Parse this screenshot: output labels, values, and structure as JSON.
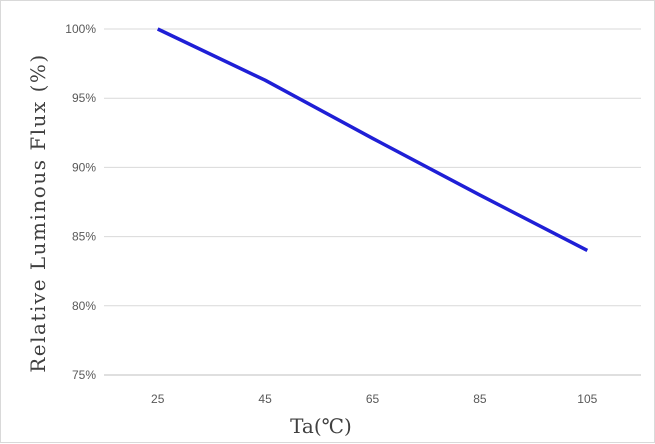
{
  "chart_data": {
    "type": "line",
    "xlabel": "Ta(℃)",
    "ylabel": "Relative Luminous Flux (%)",
    "x_ticks": [
      "25",
      "45",
      "65",
      "85",
      "105"
    ],
    "y_ticks": [
      "75%",
      "80%",
      "85%",
      "90%",
      "95%",
      "100%"
    ],
    "x": [
      25,
      45,
      65,
      85,
      105
    ],
    "ylim": [
      75,
      100
    ],
    "xlim": [
      15,
      115
    ],
    "grid": "horizontal",
    "series": [
      {
        "values": [
          100,
          96.3,
          92.1,
          88.0,
          84.0
        ],
        "color": "#1f1fd6"
      }
    ]
  }
}
